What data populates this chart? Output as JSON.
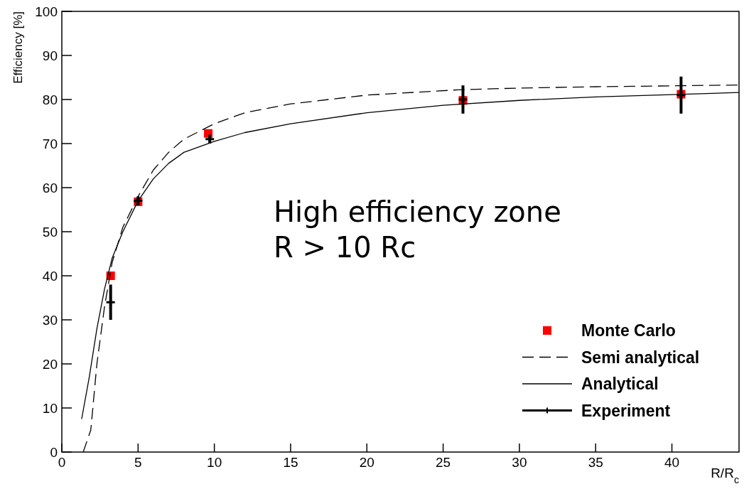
{
  "chart_data": {
    "type": "line",
    "xlabel": "R/R$_{c}$",
    "ylabel": "Efficiency [%]",
    "xlim": [
      0,
      44.4
    ],
    "ylim": [
      0,
      100
    ],
    "xticks": [
      0,
      5,
      10,
      15,
      20,
      25,
      30,
      35,
      40
    ],
    "yticks": [
      0,
      10,
      20,
      30,
      40,
      50,
      60,
      70,
      80,
      90,
      100
    ],
    "grid": false,
    "legend": "bottom right",
    "annotations": [
      "High efficiency zone",
      "R > 10 Rc"
    ],
    "series": [
      {
        "name": "Monte Carlo",
        "type": "scatter",
        "color": "#ff0000",
        "marker": "square",
        "x": [
          3.2,
          5.0,
          9.6,
          26.3,
          40.6
        ],
        "values": [
          40,
          56.8,
          72.3,
          79.8,
          81.2
        ]
      },
      {
        "name": "Semi analytical",
        "type": "line",
        "color": "#000000",
        "line_style": "dashed",
        "marker": "none",
        "x": [
          1.4,
          1.9,
          2.3,
          2.8,
          3.3,
          4,
          5,
          6,
          7,
          8,
          10,
          12,
          15,
          20,
          26,
          30,
          35,
          40,
          44.4
        ],
        "values": [
          0,
          5,
          20,
          33,
          43,
          51,
          58,
          64,
          68,
          71,
          74.5,
          77,
          79,
          81,
          82.2,
          82.6,
          82.9,
          83.1,
          83.3
        ]
      },
      {
        "name": "Analytical",
        "type": "line",
        "color": "#000000",
        "line_style": "solid",
        "marker": "none",
        "x": [
          1.3,
          1.8,
          2.3,
          2.8,
          3.3,
          4,
          5,
          6,
          7,
          8,
          10,
          12,
          15,
          20,
          25,
          30,
          35,
          40,
          44.4
        ],
        "values": [
          7.5,
          17,
          28,
          37,
          44,
          50,
          57,
          62,
          65.5,
          68,
          70.5,
          72.5,
          74.5,
          77,
          78.7,
          79.8,
          80.6,
          81.1,
          81.6
        ]
      },
      {
        "name": "Experiment",
        "type": "scatter",
        "color": "#000000",
        "marker": "cross",
        "x": [
          3.2,
          5.0,
          9.7,
          26.3,
          40.6
        ],
        "values": [
          34,
          57,
          71,
          80,
          81
        ],
        "errors": [
          [
            30,
            38
          ],
          1,
          1,
          3.2,
          4.2
        ]
      }
    ]
  }
}
